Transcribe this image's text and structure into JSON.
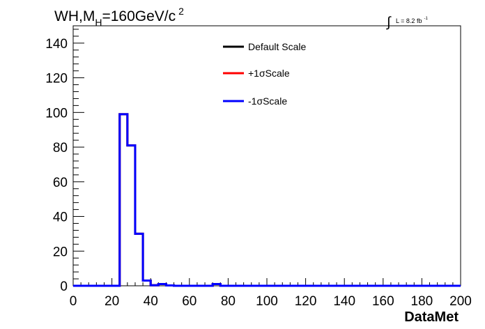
{
  "chart_data": {
    "type": "line",
    "title": {
      "main": "WH,M",
      "subscript": "H",
      "rest": "=160GeV/c",
      "superscript": "2"
    },
    "luminosity": {
      "integral_symbol": "∫",
      "text": "L = 8.2 fb",
      "superscript": "-1"
    },
    "xlabel": "DataMet",
    "ylabel": "",
    "xlim": [
      0,
      200
    ],
    "ylim": [
      0,
      150
    ],
    "xticks": [
      0,
      20,
      40,
      60,
      80,
      100,
      120,
      140,
      160,
      180,
      200
    ],
    "yticks": [
      0,
      20,
      40,
      60,
      80,
      100,
      120,
      140
    ],
    "bin_edges": [
      0,
      4,
      8,
      12,
      16,
      20,
      24,
      28,
      32,
      36,
      40,
      44,
      48,
      52,
      56,
      60,
      64,
      68,
      72,
      76,
      80,
      84,
      88,
      92,
      96,
      100,
      104,
      108,
      112,
      116,
      120,
      124,
      128,
      132,
      136,
      140,
      144,
      148,
      152,
      156,
      160,
      164,
      168,
      172,
      176,
      180,
      184,
      188,
      192,
      196,
      200
    ],
    "series": [
      {
        "name": "Default Scale",
        "color": "#000000",
        "values": [
          0,
          0,
          0,
          0,
          0,
          0,
          99,
          81,
          30,
          3,
          0.3,
          1,
          0.2,
          0,
          0,
          0,
          0,
          0,
          1,
          0,
          0,
          0,
          0,
          0,
          0,
          0,
          0,
          0,
          0,
          0,
          0,
          0,
          0,
          0,
          0,
          0,
          0,
          0,
          0,
          0,
          0,
          0,
          0,
          0,
          0,
          0,
          0,
          0,
          0,
          0
        ]
      },
      {
        "name": "+1σScale",
        "color": "#ff0000",
        "values": [
          0,
          0,
          0,
          0,
          0,
          0,
          99,
          81,
          30,
          3,
          0.3,
          1,
          0.2,
          0,
          0,
          0,
          0,
          0,
          1,
          0,
          0,
          0,
          0,
          0,
          0,
          0,
          0,
          0,
          0,
          0,
          0,
          0,
          0,
          0,
          0,
          0,
          0,
          0,
          0,
          0,
          0,
          0,
          0,
          0,
          0,
          0,
          0,
          0,
          0,
          0
        ]
      },
      {
        "name": "-1σScale",
        "color": "#0000ff",
        "values": [
          0,
          0,
          0,
          0,
          0,
          0,
          99,
          81,
          30,
          3,
          0.3,
          1,
          0.2,
          0,
          0,
          0,
          0,
          0,
          1,
          0,
          0,
          0,
          0,
          0,
          0,
          0,
          0,
          0,
          0,
          0,
          0,
          0,
          0,
          0,
          0,
          0,
          0,
          0,
          0,
          0,
          0,
          0,
          0,
          0,
          0,
          0,
          0,
          0,
          0,
          0
        ]
      }
    ],
    "legend": {
      "entries": [
        "Default Scale",
        "+1σScale",
        "-1σScale"
      ],
      "colors": [
        "#000000",
        "#ff0000",
        "#0000ff"
      ]
    }
  }
}
